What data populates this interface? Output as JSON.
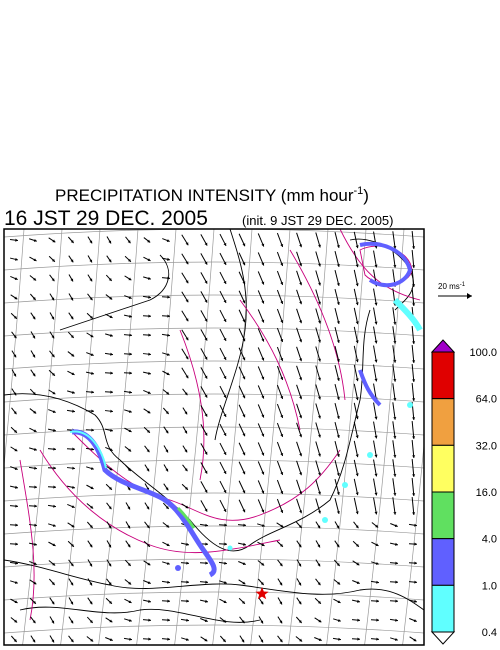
{
  "header": {
    "title": {
      "text": "PRECIPITATION INTENSITY (mm hour",
      "superscript": "-1",
      "suffix": ")"
    },
    "valid_time": "16 JST 29 DEC. 2005",
    "init_time": "(init. 9 JST 29 DEC. 2005)"
  },
  "wind_key": {
    "text": "20 ms",
    "superscript": "-1"
  },
  "legend": {
    "top_color": "#a000c8",
    "bottom_color": "#ffffff",
    "colors": [
      "#e00000",
      "#f0a040",
      "#ffff60",
      "#60e060",
      "#6060ff",
      "#60ffff"
    ],
    "labels": [
      "100.0",
      "64.0",
      "32.0",
      "16.0",
      "4.0",
      "1.0",
      "0.4"
    ]
  }
}
